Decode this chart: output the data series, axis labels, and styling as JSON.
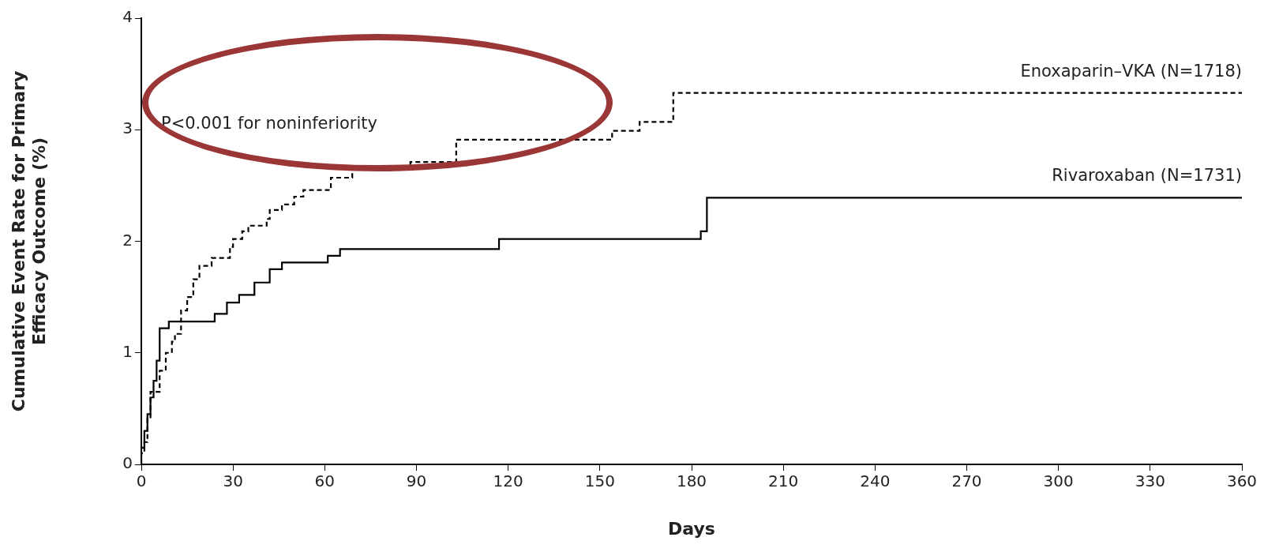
{
  "chart_data": {
    "type": "step",
    "xlabel": "Days",
    "ylabel": "Cumulative Event Rate for Primary Efficacy Outcome (%)",
    "annotations": [
      "P<0.001 for noninferiority"
    ],
    "series": [
      {
        "name": "Enoxaparin–VKA (N=1718)",
        "color": "#000000",
        "line_style": "dashed",
        "x": [
          0,
          1,
          2,
          3,
          6,
          8,
          10,
          11,
          13,
          15,
          17,
          19,
          23,
          29,
          30,
          33,
          35,
          41,
          42,
          46,
          50,
          53,
          62,
          69,
          88,
          103,
          154,
          163,
          174,
          250,
          360
        ],
        "values": [
          0,
          0.1,
          0.2,
          0.41,
          0.65,
          0.84,
          1.0,
          1.1,
          1.17,
          1.38,
          1.5,
          1.66,
          1.78,
          1.85,
          1.95,
          2.02,
          2.09,
          2.14,
          2.2,
          2.28,
          2.33,
          2.4,
          2.46,
          2.57,
          2.65,
          2.71,
          2.91,
          2.99,
          3.07,
          3.33,
          3.33
        ]
      },
      {
        "name": "Rivaroxaban (N=1731)",
        "color": "#000000",
        "line_style": "solid",
        "x": [
          0,
          1,
          2,
          3,
          4,
          5,
          6,
          9,
          24,
          28,
          32,
          37,
          42,
          46,
          61,
          65,
          117,
          183,
          185,
          304,
          360
        ],
        "values": [
          0,
          0.15,
          0.3,
          0.45,
          0.6,
          0.75,
          0.93,
          1.22,
          1.28,
          1.35,
          1.45,
          1.52,
          1.63,
          1.75,
          1.81,
          1.87,
          1.93,
          2.02,
          2.09,
          2.39,
          2.39
        ]
      }
    ],
    "xlim": [
      0,
      360
    ],
    "xticks": [
      0,
      30,
      60,
      90,
      120,
      150,
      180,
      210,
      240,
      270,
      300,
      330,
      360
    ],
    "ylim": [
      0,
      4
    ],
    "yticks": [
      0,
      1,
      2,
      3,
      4
    ],
    "grid": false,
    "legend": false,
    "marker": "none"
  }
}
